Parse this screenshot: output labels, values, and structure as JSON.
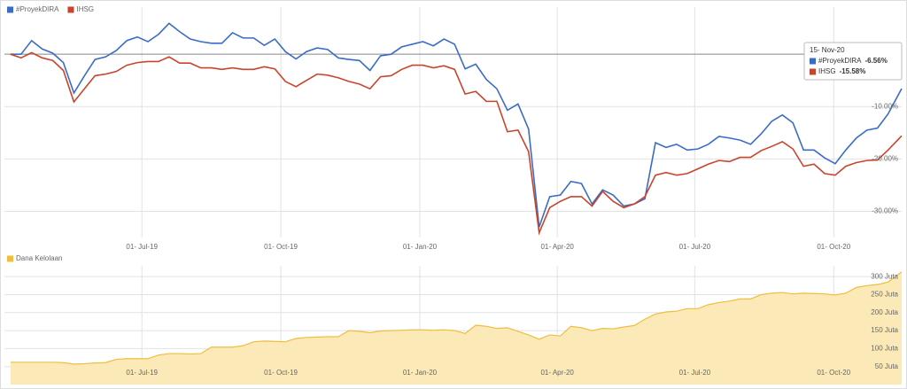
{
  "chart_data": [
    {
      "type": "line",
      "legend": "top-left",
      "grid": true,
      "x": [
        "05- Apr-19",
        "12- Apr-19",
        "19- Apr-19",
        "26- Apr-19",
        "03- May-19",
        "10- May-19",
        "17- May-19",
        "24- May-19",
        "31- May-19",
        "07- Jun-19",
        "14- Jun-19",
        "21- Jun-19",
        "28- Jun-19",
        "05- Jul-19",
        "12- Jul-19",
        "19- Jul-19",
        "26- Jul-19",
        "02- Aug-19",
        "09- Aug-19",
        "16- Aug-19",
        "23- Aug-19",
        "30- Aug-19",
        "06- Sep-19",
        "13- Sep-19",
        "20- Sep-19",
        "27- Sep-19",
        "04- Oct-19",
        "11- Oct-19",
        "18- Oct-19",
        "25- Oct-19",
        "01- Nov-19",
        "08- Nov-19",
        "15- Nov-19",
        "22- Nov-19",
        "29- Nov-19",
        "06- Dec-19",
        "13- Dec-19",
        "20- Dec-19",
        "27- Dec-19",
        "03- Jan-20",
        "10- Jan-20",
        "17- Jan-20",
        "24- Jan-20",
        "31- Jan-20",
        "07- Feb-20",
        "14- Feb-20",
        "21- Feb-20",
        "28- Feb-20",
        "06- Mar-20",
        "13- Mar-20",
        "20- Mar-20",
        "27- Mar-20",
        "03- Apr-20",
        "10- Apr-20",
        "17- Apr-20",
        "24- Apr-20",
        "01- May-20",
        "08- May-20",
        "15- May-20",
        "22- May-20",
        "29- May-20",
        "05- Jun-20",
        "12- Jun-20",
        "19- Jun-20",
        "26- Jun-20",
        "03- Jul-20",
        "10- Jul-20",
        "17- Jul-20",
        "24- Jul-20",
        "31- Jul-20",
        "07- Aug-20",
        "14- Aug-20",
        "21- Aug-20",
        "28- Aug-20",
        "04- Sep-20",
        "11- Sep-20",
        "18- Sep-20",
        "25- Sep-20",
        "02- Oct-20",
        "09- Oct-20",
        "16- Oct-20",
        "23- Oct-20",
        "30- Oct-20",
        "06- Nov-20",
        "15- Nov-20"
      ],
      "xlim": [
        "01- Apr-19",
        "15- Nov-20"
      ],
      "xticks": [
        "01- Jul-19",
        "01- Oct-19",
        "01- Jan-20",
        "01- Apr-20",
        "01- Jul-20",
        "01- Oct-20"
      ],
      "ylim": [
        -35,
        9
      ],
      "yticks": [
        {
          "value": -10,
          "label": "-10.00%"
        },
        {
          "value": -20,
          "label": "-20.00%"
        },
        {
          "value": -30,
          "label": "-30.00%"
        }
      ],
      "series": [
        {
          "name": "#ProyekDIRA",
          "color": "#3a6cc6",
          "values": [
            0,
            0,
            2.6,
            1.0,
            0.2,
            -1.6,
            -7.4,
            -4.1,
            -1.0,
            -0.5,
            0.7,
            2.6,
            3.3,
            2.4,
            3.8,
            5.9,
            4.3,
            2.9,
            2.4,
            2.1,
            2.1,
            4.1,
            3.1,
            3.1,
            1.7,
            2.9,
            0.5,
            -0.9,
            0.5,
            1.2,
            0.9,
            -0.7,
            -1.0,
            -1.2,
            -3.1,
            -0.3,
            0,
            1.4,
            1.9,
            2.4,
            1.6,
            2.9,
            1.9,
            -2.8,
            -1.9,
            -4.8,
            -6.6,
            -10.7,
            -9.5,
            -14.3,
            -33.0,
            -27.2,
            -26.9,
            -24.3,
            -24.7,
            -28.6,
            -25.9,
            -26.9,
            -29.0,
            -28.6,
            -27.6,
            -16.9,
            -17.8,
            -17.2,
            -18.3,
            -18.1,
            -17.2,
            -15.7,
            -16.0,
            -16.4,
            -17.2,
            -15.2,
            -12.8,
            -11.6,
            -13.1,
            -18.3,
            -18.3,
            -19.8,
            -20.9,
            -18.3,
            -16.0,
            -14.5,
            -14.1,
            -11.4,
            -6.56
          ]
        },
        {
          "name": "IHSG",
          "color": "#c9442b",
          "values": [
            0,
            -0.7,
            0.3,
            -0.7,
            -1.2,
            -3.1,
            -9.1,
            -6.6,
            -4.1,
            -3.8,
            -3.3,
            -2.1,
            -1.6,
            -1.4,
            -1.4,
            -0.5,
            -1.7,
            -1.7,
            -2.6,
            -2.6,
            -2.9,
            -2.6,
            -2.9,
            -2.9,
            -2.4,
            -2.8,
            -5.2,
            -6.2,
            -5.0,
            -3.8,
            -4.0,
            -4.5,
            -5.2,
            -5.7,
            -6.6,
            -4.3,
            -4.1,
            -2.9,
            -2.1,
            -2.1,
            -2.6,
            -2.2,
            -2.9,
            -7.6,
            -7.1,
            -9.0,
            -9.0,
            -14.8,
            -14.5,
            -18.6,
            -34.1,
            -29.3,
            -28.1,
            -27.2,
            -27.2,
            -29.0,
            -26.2,
            -28.1,
            -29.3,
            -28.6,
            -27.2,
            -23.1,
            -22.6,
            -23.1,
            -22.8,
            -21.9,
            -21.0,
            -20.3,
            -20.5,
            -19.7,
            -19.7,
            -18.4,
            -17.6,
            -16.7,
            -18.1,
            -21.4,
            -21.0,
            -22.8,
            -23.1,
            -21.4,
            -20.7,
            -20.3,
            -20.2,
            -18.3,
            -15.58
          ]
        }
      ],
      "tooltip": {
        "x": "15- Nov-20",
        "value_labels": [
          "-6.56%",
          "-15.58%"
        ]
      }
    },
    {
      "type": "area",
      "legend": "top-left",
      "grid": true,
      "x": [
        "05- Apr-19",
        "12- Apr-19",
        "19- Apr-19",
        "26- Apr-19",
        "03- May-19",
        "10- May-19",
        "17- May-19",
        "24- May-19",
        "31- May-19",
        "07- Jun-19",
        "14- Jun-19",
        "21- Jun-19",
        "28- Jun-19",
        "05- Jul-19",
        "12- Jul-19",
        "19- Jul-19",
        "26- Jul-19",
        "02- Aug-19",
        "09- Aug-19",
        "16- Aug-19",
        "23- Aug-19",
        "30- Aug-19",
        "06- Sep-19",
        "13- Sep-19",
        "20- Sep-19",
        "27- Sep-19",
        "04- Oct-19",
        "11- Oct-19",
        "18- Oct-19",
        "25- Oct-19",
        "01- Nov-19",
        "08- Nov-19",
        "15- Nov-19",
        "22- Nov-19",
        "29- Nov-19",
        "06- Dec-19",
        "13- Dec-19",
        "20- Dec-19",
        "27- Dec-19",
        "03- Jan-20",
        "10- Jan-20",
        "17- Jan-20",
        "24- Jan-20",
        "31- Jan-20",
        "07- Feb-20",
        "14- Feb-20",
        "21- Feb-20",
        "28- Feb-20",
        "06- Mar-20",
        "13- Mar-20",
        "20- Mar-20",
        "27- Mar-20",
        "03- Apr-20",
        "10- Apr-20",
        "17- Apr-20",
        "24- Apr-20",
        "01- May-20",
        "08- May-20",
        "15- May-20",
        "22- May-20",
        "29- May-20",
        "05- Jun-20",
        "12- Jun-20",
        "19- Jun-20",
        "26- Jun-20",
        "03- Jul-20",
        "10- Jul-20",
        "17- Jul-20",
        "24- Jul-20",
        "31- Jul-20",
        "07- Aug-20",
        "14- Aug-20",
        "21- Aug-20",
        "28- Aug-20",
        "04- Sep-20",
        "11- Sep-20",
        "18- Sep-20",
        "25- Sep-20",
        "02- Oct-20",
        "09- Oct-20",
        "16- Oct-20",
        "23- Oct-20",
        "30- Oct-20",
        "06- Nov-20",
        "15- Nov-20"
      ],
      "xlim": [
        "01- Apr-19",
        "15- Nov-20"
      ],
      "xticks": [
        "01- Jul-19",
        "01- Oct-19",
        "01- Jan-20",
        "01- Apr-20",
        "01- Jul-20",
        "01- Oct-20"
      ],
      "ylim": [
        0,
        330
      ],
      "yticks": [
        {
          "value": 50,
          "label": "50 Juta"
        },
        {
          "value": 100,
          "label": "100 Juta"
        },
        {
          "value": 150,
          "label": "150 Juta"
        },
        {
          "value": 200,
          "label": "200 Juta"
        },
        {
          "value": 250,
          "label": "250 Juta"
        },
        {
          "value": 300,
          "label": "300 Juta"
        }
      ],
      "series": [
        {
          "name": "Dana Kelolaan",
          "color": "#f0bd3c",
          "fill": "#fbeab8",
          "values": [
            62,
            62,
            62,
            62,
            62,
            61,
            57,
            58,
            60,
            61,
            70,
            72,
            72,
            72,
            82,
            86,
            86,
            85,
            86,
            104,
            104,
            104,
            108,
            119,
            121,
            120,
            119,
            128,
            131,
            132,
            133,
            133,
            150,
            148,
            144,
            149,
            150,
            151,
            152,
            152,
            151,
            152,
            150,
            142,
            165,
            162,
            156,
            158,
            148,
            138,
            126,
            138,
            135,
            162,
            158,
            150,
            156,
            155,
            160,
            164,
            182,
            196,
            202,
            204,
            211,
            211,
            222,
            228,
            232,
            238,
            238,
            250,
            254,
            256,
            252,
            254,
            253,
            252,
            249,
            254,
            270,
            275,
            278,
            285,
            313
          ]
        }
      ]
    }
  ]
}
